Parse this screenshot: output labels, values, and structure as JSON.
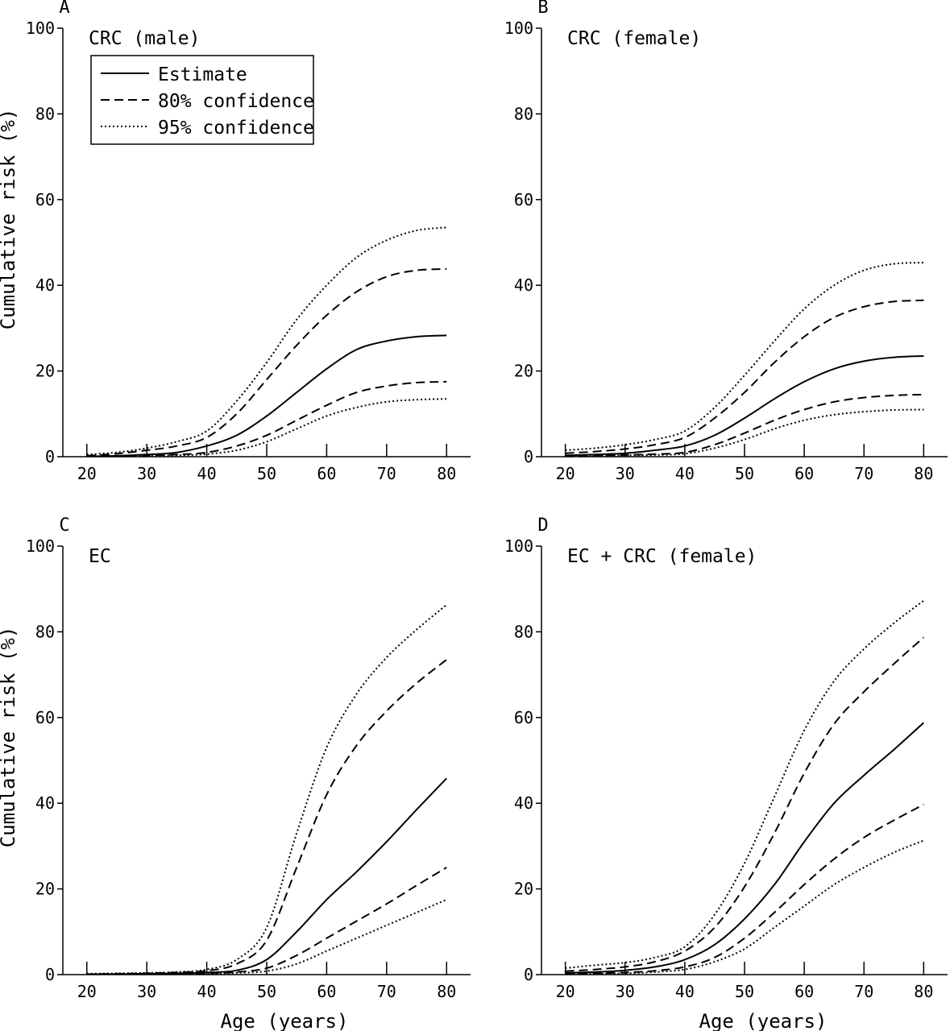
{
  "figure": {
    "ylabel_left_top": "Cumulative risk (%)",
    "ylabel_left_bottom": "Cumulative risk (%)",
    "xlabel_bottom_left": "Age (years)",
    "xlabel_bottom_right": "Age (years)"
  },
  "legend": {
    "entries": [
      {
        "label": "Estimate",
        "style": "solid"
      },
      {
        "label": "80% confidence",
        "style": "dashed"
      },
      {
        "label": "95% confidence",
        "style": "dotted"
      }
    ]
  },
  "chart_data": [
    {
      "type": "line",
      "panel_letter": "A",
      "title": "CRC (male)",
      "xlabel": "",
      "ylabel": "Cumulative risk (%)",
      "xlim": [
        16,
        84
      ],
      "ylim": [
        0,
        100
      ],
      "xticks": [
        "20",
        "30",
        "40",
        "50",
        "60",
        "70",
        "80"
      ],
      "yticks": [
        "0",
        "20",
        "40",
        "60",
        "80",
        "100"
      ],
      "x": [
        20,
        25,
        30,
        35,
        40,
        45,
        50,
        55,
        60,
        65,
        70,
        75,
        80
      ],
      "series": [
        {
          "style": "solid",
          "values": [
            0.1,
            0.2,
            0.5,
            1.0,
            2.5,
            5.0,
            9.5,
            15.0,
            20.5,
            25.0,
            27.0,
            28.0,
            28.3
          ]
        },
        {
          "style": "dashed",
          "values": [
            0.2,
            0.7,
            1.5,
            2.5,
            4.5,
            10.0,
            18.0,
            26.0,
            33.0,
            38.5,
            42.0,
            43.5,
            43.8
          ]
        },
        {
          "style": "dotted",
          "values": [
            0.5,
            1.0,
            2.0,
            3.5,
            6.0,
            13.0,
            22.0,
            32.0,
            40.0,
            46.5,
            50.5,
            52.8,
            53.5
          ]
        },
        {
          "style": "dashed",
          "values": [
            0.1,
            0.2,
            0.3,
            0.5,
            1.0,
            2.5,
            5.0,
            8.5,
            12.0,
            15.0,
            16.5,
            17.3,
            17.5
          ]
        },
        {
          "style": "dotted",
          "values": [
            0.1,
            0.1,
            0.2,
            0.3,
            0.6,
            1.5,
            3.5,
            6.5,
            9.5,
            11.5,
            12.8,
            13.3,
            13.5
          ]
        }
      ]
    },
    {
      "type": "line",
      "panel_letter": "B",
      "title": "CRC (female)",
      "xlabel": "",
      "ylabel": "",
      "xlim": [
        16,
        84
      ],
      "ylim": [
        0,
        100
      ],
      "xticks": [
        "20",
        "30",
        "40",
        "50",
        "60",
        "70",
        "80"
      ],
      "yticks": [
        "0",
        "20",
        "40",
        "60",
        "80",
        "100"
      ],
      "x": [
        20,
        25,
        30,
        35,
        40,
        45,
        50,
        55,
        60,
        65,
        70,
        75,
        80
      ],
      "series": [
        {
          "style": "solid",
          "values": [
            0.3,
            0.5,
            0.8,
            1.5,
            2.5,
            5.0,
            9.0,
            13.5,
            17.5,
            20.5,
            22.3,
            23.2,
            23.5
          ]
        },
        {
          "style": "dashed",
          "values": [
            0.8,
            1.2,
            1.8,
            2.8,
            4.5,
            9.0,
            15.0,
            22.0,
            28.0,
            32.5,
            35.0,
            36.2,
            36.5
          ]
        },
        {
          "style": "dotted",
          "values": [
            1.5,
            2.0,
            2.8,
            4.0,
            6.0,
            11.5,
            19.0,
            27.0,
            34.5,
            40.0,
            43.5,
            45.0,
            45.3
          ]
        },
        {
          "style": "dashed",
          "values": [
            0.2,
            0.3,
            0.4,
            0.6,
            1.0,
            2.8,
            5.5,
            8.5,
            11.0,
            12.8,
            13.8,
            14.3,
            14.5
          ]
        },
        {
          "style": "dotted",
          "values": [
            0.1,
            0.2,
            0.3,
            0.4,
            0.7,
            2.0,
            4.0,
            6.5,
            8.5,
            9.8,
            10.5,
            10.9,
            11.0
          ]
        }
      ]
    },
    {
      "type": "line",
      "panel_letter": "C",
      "title": "EC",
      "xlabel": "Age (years)",
      "ylabel": "Cumulative risk (%)",
      "xlim": [
        16,
        84
      ],
      "ylim": [
        0,
        100
      ],
      "xticks": [
        "20",
        "30",
        "40",
        "50",
        "60",
        "70",
        "80"
      ],
      "yticks": [
        "0",
        "20",
        "40",
        "60",
        "80",
        "100"
      ],
      "x": [
        20,
        25,
        30,
        35,
        40,
        45,
        50,
        55,
        60,
        65,
        70,
        75,
        80
      ],
      "series": [
        {
          "style": "solid",
          "values": [
            0.1,
            0.1,
            0.2,
            0.3,
            0.5,
            1.0,
            3.5,
            10.0,
            17.5,
            24.0,
            31.0,
            38.5,
            45.8
          ]
        },
        {
          "style": "dashed",
          "values": [
            0.1,
            0.2,
            0.3,
            0.5,
            0.9,
            2.5,
            8.0,
            25.0,
            42.0,
            53.5,
            61.5,
            68.0,
            73.5
          ]
        },
        {
          "style": "dotted",
          "values": [
            0.2,
            0.3,
            0.4,
            0.6,
            1.2,
            3.5,
            11.0,
            33.0,
            53.0,
            65.5,
            74.0,
            80.5,
            86.3
          ]
        },
        {
          "style": "dashed",
          "values": [
            0.1,
            0.1,
            0.1,
            0.2,
            0.3,
            0.6,
            1.5,
            4.5,
            8.5,
            12.5,
            16.5,
            20.8,
            25.0
          ]
        },
        {
          "style": "dotted",
          "values": [
            0.1,
            0.1,
            0.1,
            0.1,
            0.2,
            0.4,
            0.8,
            2.5,
            5.5,
            8.5,
            11.5,
            14.5,
            17.5
          ]
        }
      ]
    },
    {
      "type": "line",
      "panel_letter": "D",
      "title": "EC + CRC (female)",
      "xlabel": "Age (years)",
      "ylabel": "",
      "xlim": [
        16,
        84
      ],
      "ylim": [
        0,
        100
      ],
      "xticks": [
        "20",
        "30",
        "40",
        "50",
        "60",
        "70",
        "80"
      ],
      "yticks": [
        "0",
        "20",
        "40",
        "60",
        "80",
        "100"
      ],
      "x": [
        20,
        25,
        30,
        35,
        40,
        45,
        50,
        55,
        60,
        65,
        70,
        75,
        80
      ],
      "series": [
        {
          "style": "solid",
          "values": [
            0.4,
            0.6,
            1.0,
            1.8,
            3.5,
            7.0,
            13.0,
            21.0,
            31.0,
            40.0,
            46.5,
            52.5,
            58.8
          ]
        },
        {
          "style": "dashed",
          "values": [
            0.8,
            1.2,
            1.8,
            3.0,
            5.5,
            11.0,
            20.5,
            33.0,
            47.0,
            58.5,
            66.0,
            72.5,
            78.7
          ]
        },
        {
          "style": "dotted",
          "values": [
            1.5,
            2.2,
            2.8,
            4.0,
            6.5,
            14.0,
            26.0,
            41.5,
            57.0,
            68.5,
            76.0,
            82.0,
            87.3
          ]
        },
        {
          "style": "dashed",
          "values": [
            0.2,
            0.3,
            0.5,
            0.9,
            1.8,
            4.0,
            8.5,
            14.5,
            21.0,
            27.0,
            32.0,
            36.0,
            39.7
          ]
        },
        {
          "style": "dotted",
          "values": [
            0.1,
            0.2,
            0.3,
            0.6,
            1.2,
            3.0,
            6.0,
            11.0,
            16.0,
            21.0,
            25.0,
            28.5,
            31.3
          ]
        }
      ]
    }
  ]
}
